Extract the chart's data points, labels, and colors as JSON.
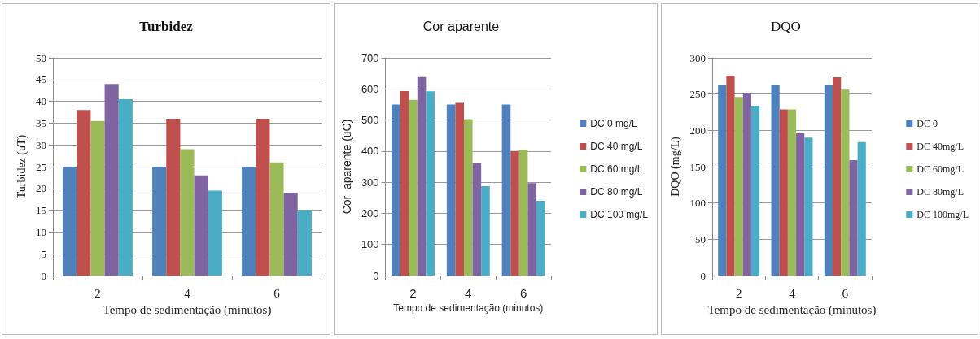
{
  "chart_data": [
    {
      "type": "bar",
      "title": "Turbidez",
      "xlabel": "Tempo de sedimentação (minutos)",
      "ylabel": "Turbidez (uT)",
      "categories": [
        "2",
        "4",
        "6"
      ],
      "series": [
        {
          "color": "#4f81bd",
          "values": [
            25,
            25,
            25
          ]
        },
        {
          "color": "#c0504d",
          "values": [
            38,
            36,
            36
          ]
        },
        {
          "color": "#9bbb59",
          "values": [
            35.5,
            29,
            26
          ]
        },
        {
          "color": "#8064a2",
          "values": [
            44,
            23,
            19
          ]
        },
        {
          "color": "#4bacc6",
          "values": [
            40.5,
            19.5,
            15
          ]
        }
      ],
      "ylim": [
        0,
        50
      ],
      "yticks": [
        0,
        5,
        10,
        15,
        20,
        25,
        30,
        35,
        40,
        45,
        50
      ],
      "grid": "y",
      "legend": false
    },
    {
      "type": "bar",
      "title": "Cor aparente",
      "xlabel": "Tempo de sedimentação (minutos)",
      "ylabel": "Cor  aparente (uC)",
      "categories": [
        "2",
        "4",
        "6"
      ],
      "series": [
        {
          "name": "DC 0 mg/L",
          "color": "#4f81bd",
          "values": [
            550,
            550,
            550
          ]
        },
        {
          "name": "DC 40 mg/L",
          "color": "#c0504d",
          "values": [
            593,
            555,
            400
          ]
        },
        {
          "name": "DC 60 mg/L",
          "color": "#9bbb59",
          "values": [
            565,
            503,
            405
          ]
        },
        {
          "name": "DC 80 mg/L",
          "color": "#8064a2",
          "values": [
            638,
            362,
            297
          ]
        },
        {
          "name": "DC 100 mg/L",
          "color": "#4bacc6",
          "values": [
            592,
            287,
            240
          ]
        }
      ],
      "ylim": [
        0,
        700
      ],
      "yticks": [
        0,
        100,
        200,
        300,
        400,
        500,
        600,
        700
      ],
      "grid": "y",
      "legend": "right"
    },
    {
      "type": "bar",
      "title": "DQO",
      "xlabel": "Tempo de sedimentação (minutos)",
      "ylabel": "DQO (mg/L)",
      "categories": [
        "2",
        "4",
        "6"
      ],
      "series": [
        {
          "name": "DC 0",
          "color": "#4f81bd",
          "values": [
            263,
            263,
            263
          ]
        },
        {
          "name": "DC 40mg/L",
          "color": "#c0504d",
          "values": [
            275,
            229,
            273
          ]
        },
        {
          "name": "DC 60mg/L",
          "color": "#9bbb59",
          "values": [
            246,
            229,
            256
          ]
        },
        {
          "name": "DC 80mg/L",
          "color": "#8064a2",
          "values": [
            252,
            196,
            159
          ]
        },
        {
          "name": "DC 100mg/L",
          "color": "#4bacc6",
          "values": [
            234,
            190,
            184
          ]
        }
      ],
      "ylim": [
        0,
        300
      ],
      "yticks": [
        0,
        50,
        100,
        150,
        200,
        250,
        300
      ],
      "grid": "y",
      "legend": "right"
    }
  ]
}
